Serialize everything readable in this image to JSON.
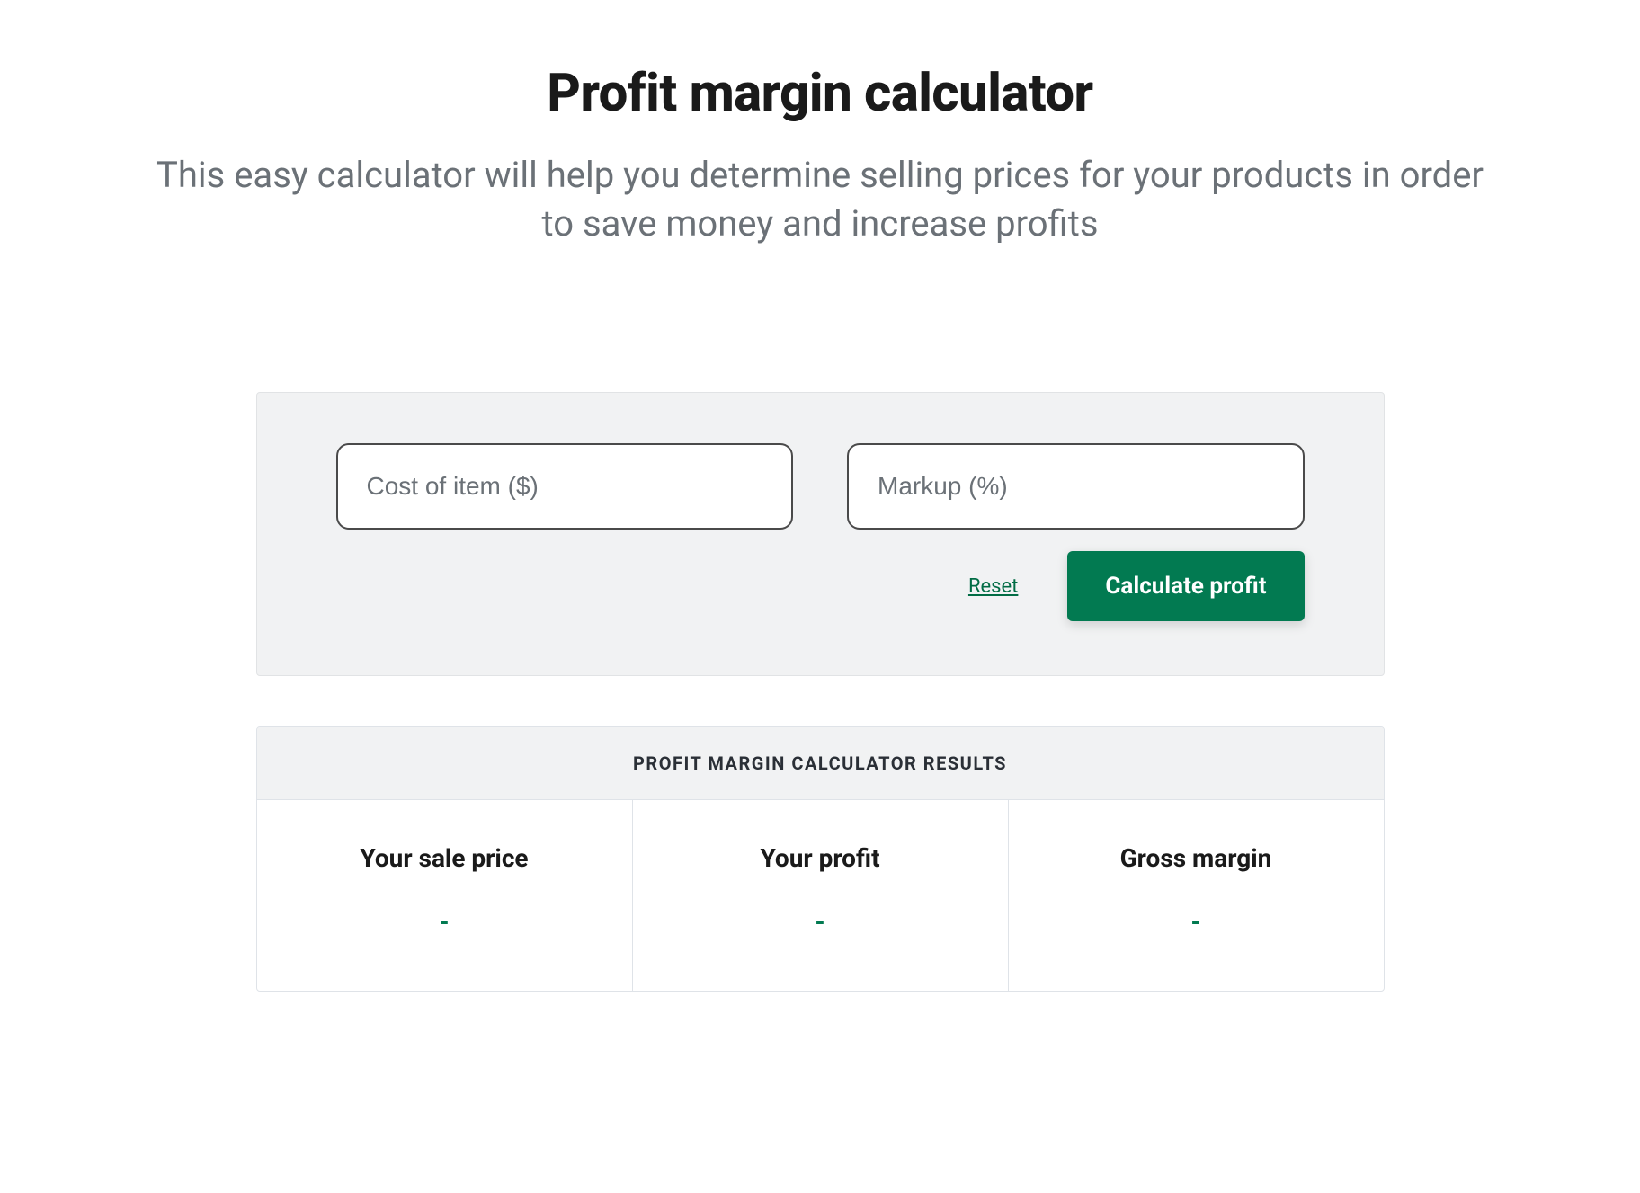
{
  "header": {
    "title": "Profit margin calculator",
    "subtitle": "This easy calculator will help you determine selling prices for your products in order to save money and increase profits"
  },
  "calculator": {
    "cost_placeholder": "Cost of item ($)",
    "cost_value": "",
    "markup_placeholder": "Markup (%)",
    "markup_value": "",
    "reset_label": "Reset",
    "calculate_label": "Calculate profit",
    "panel_bg": "#f1f2f3",
    "input_border": "#4a4a4a",
    "button_bg": "#027a51",
    "link_color": "#016c44"
  },
  "results": {
    "header_label": "PROFIT MARGIN CALCULATOR RESULTS",
    "cells": [
      {
        "label": "Your sale price",
        "value": "-"
      },
      {
        "label": "Your profit",
        "value": "-"
      },
      {
        "label": "Gross margin",
        "value": "-"
      }
    ],
    "value_color": "#027a51",
    "border_color": "#dfe3e8"
  }
}
